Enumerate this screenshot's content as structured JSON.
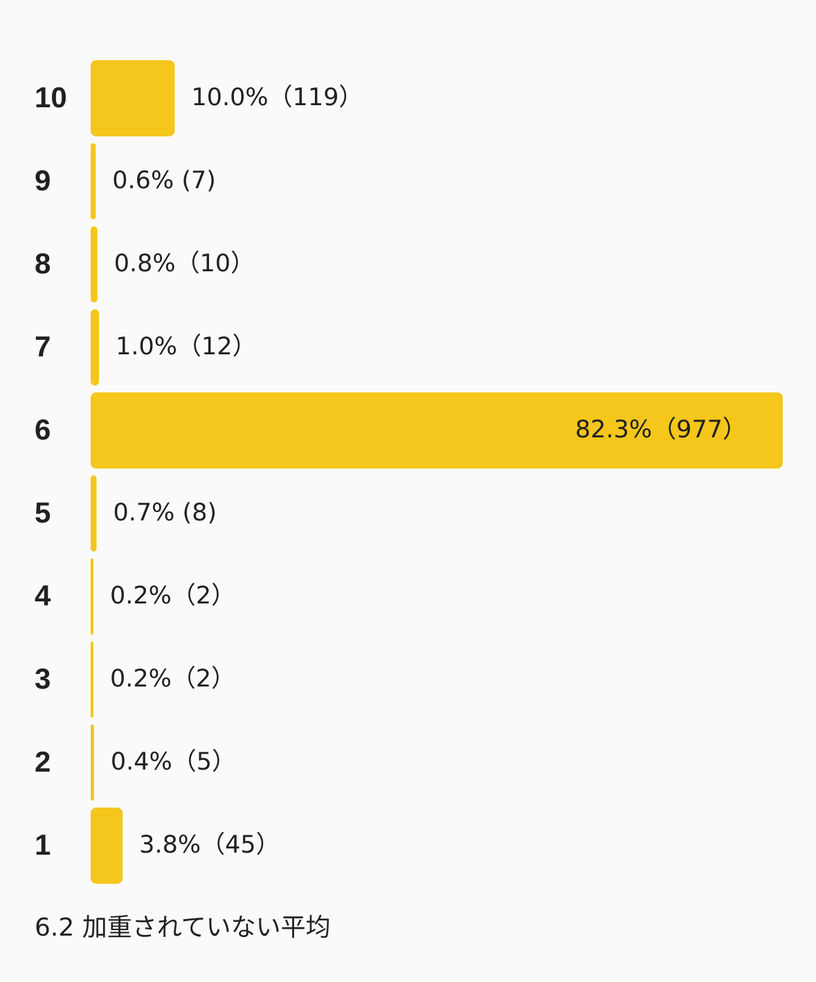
{
  "chart_data": {
    "type": "bar",
    "orientation": "horizontal",
    "categories": [
      "10",
      "9",
      "8",
      "7",
      "6",
      "5",
      "4",
      "3",
      "2",
      "1"
    ],
    "values": [
      10.0,
      0.6,
      0.8,
      1.0,
      82.3,
      0.7,
      0.2,
      0.2,
      0.4,
      3.8
    ],
    "value_labels": [
      "10.0%（119）",
      "0.6% (7)",
      "0.8%（10）",
      "1.0%（12）",
      "82.3%（977）",
      "0.7% (8)",
      "0.2%（2）",
      "0.2%（2）",
      "0.4%（5）",
      "3.8%（45）"
    ],
    "color": "#f5c61c",
    "caption": "6.2 加重されていない平均"
  }
}
